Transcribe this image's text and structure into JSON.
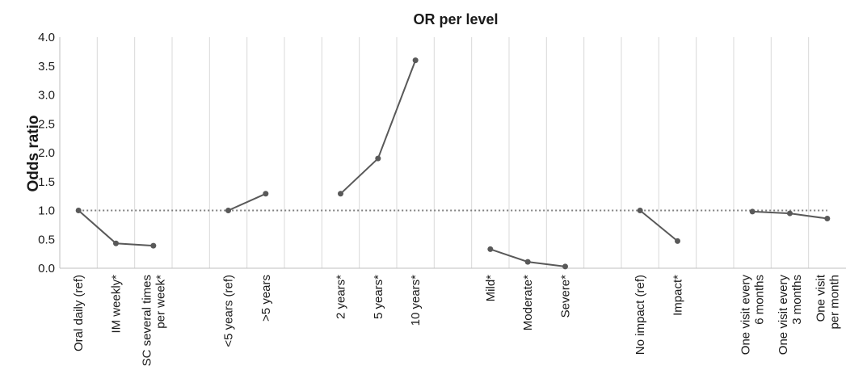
{
  "chart_data": {
    "type": "line",
    "title": "OR per level",
    "ylabel": "Odds ratio",
    "ylim": [
      0,
      4
    ],
    "yticks": [
      "0.0",
      "0.5",
      "1.0",
      "1.5",
      "2.0",
      "2.5",
      "3.0",
      "3.5",
      "4.0"
    ],
    "reference_line": 1.0,
    "grid": "vertical",
    "categories": [
      [
        "Oral daily (ref)"
      ],
      [
        "IM weekly*"
      ],
      [
        "SC several times",
        "per week*"
      ],
      [],
      [
        "<5 years (ref)"
      ],
      [
        ">5 years"
      ],
      [],
      [
        "2 years*"
      ],
      [
        "5 years*"
      ],
      [
        "10 years*"
      ],
      [],
      [
        "Mild*"
      ],
      [
        "Moderate*"
      ],
      [
        "Severe*"
      ],
      [],
      [
        "No impact (ref)"
      ],
      [
        "Impact*"
      ],
      [],
      [
        "One visit every",
        "6 months"
      ],
      [
        "One visit every",
        "3 months"
      ],
      [
        "One visit",
        "per month"
      ]
    ],
    "series": [
      {
        "points": [
          [
            0,
            1.0
          ],
          [
            1,
            0.43
          ],
          [
            2,
            0.39
          ]
        ]
      },
      {
        "points": [
          [
            4,
            1.0
          ],
          [
            5,
            1.29
          ]
        ]
      },
      {
        "points": [
          [
            7,
            1.29
          ],
          [
            8,
            1.9
          ],
          [
            9,
            3.6
          ]
        ]
      },
      {
        "points": [
          [
            11,
            0.33
          ],
          [
            12,
            0.11
          ],
          [
            13,
            0.03
          ]
        ]
      },
      {
        "points": [
          [
            15,
            1.0
          ],
          [
            16,
            0.47
          ]
        ]
      },
      {
        "points": [
          [
            18,
            0.98
          ],
          [
            19,
            0.95
          ],
          [
            20,
            0.86
          ]
        ]
      }
    ]
  }
}
